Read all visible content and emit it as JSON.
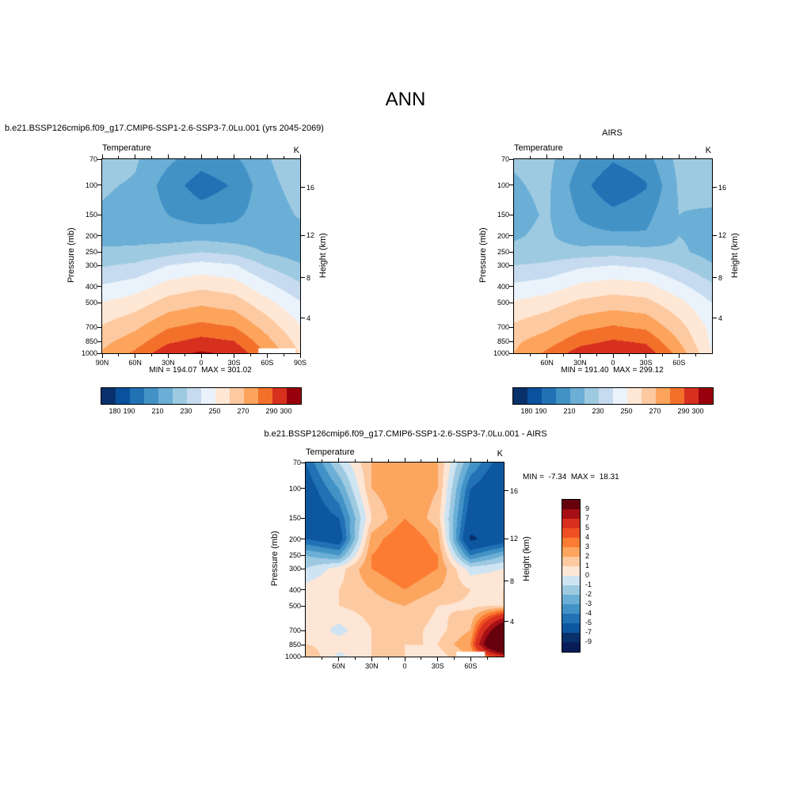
{
  "title": "ANN",
  "chart_data": [
    {
      "type": "heatmap",
      "panel": "model",
      "title": "b.e21.BSSP126cmip6.f09_g17.CMIP6-SSP1-2.6-SSP3-7.0Lu.001 (yrs 2045-2069)",
      "field_name": "Temperature",
      "units": "K",
      "ylabel": "Pressure (mb)",
      "ylabel_right": "Height (km)",
      "stats": "MIN = 194.07  MAX = 301.02",
      "min": 194.07,
      "max": 301.02,
      "lats": [
        90,
        60,
        30,
        0,
        -30,
        -60,
        -90
      ],
      "pressures_mb": [
        70,
        100,
        150,
        200,
        250,
        300,
        400,
        500,
        700,
        850,
        1000
      ],
      "values": [
        [
          224,
          221,
          212,
          204,
          208,
          219,
          227
        ],
        [
          221,
          219,
          205,
          195,
          201,
          217,
          224
        ],
        [
          219,
          217,
          210,
          205,
          208,
          215,
          221
        ],
        [
          218,
          217,
          215,
          216,
          214,
          214,
          216
        ],
        [
          221,
          222,
          226,
          230,
          227,
          219,
          215
        ],
        [
          229,
          232,
          240,
          244,
          241,
          229,
          221
        ],
        [
          241,
          245,
          254,
          258,
          255,
          243,
          232
        ],
        [
          250,
          255,
          264,
          268,
          265,
          253,
          241
        ],
        [
          261,
          268,
          279,
          283,
          280,
          266,
          251
        ],
        [
          267,
          275,
          288,
          293,
          290,
          273,
          256
        ],
        [
          271,
          282,
          297,
          301,
          298,
          279,
          259
        ]
      ],
      "levels": [
        180,
        190,
        200,
        210,
        220,
        230,
        240,
        250,
        260,
        270,
        280,
        290,
        300
      ],
      "colors": [
        "#08306b",
        "#0a519e",
        "#2171b5",
        "#4292c6",
        "#6baed6",
        "#9ecae1",
        "#c6dbef",
        "#eaf3fb",
        "#fee7d4",
        "#fdc9a0",
        "#fca45c",
        "#f3702b",
        "#d7301f",
        "#99000d"
      ],
      "colorbar_labels": [
        180,
        190,
        210,
        230,
        250,
        270,
        290,
        300
      ],
      "x_ticks": {
        "major": [
          90,
          60,
          30,
          0,
          -30,
          -60,
          -90
        ],
        "labels": [
          "90N",
          "60N",
          "30N",
          "0",
          "30S",
          "60S",
          "90S"
        ],
        "minor": [
          75,
          45,
          15,
          -15,
          -45,
          -75
        ]
      },
      "y_ticks": [
        70,
        100,
        150,
        200,
        250,
        300,
        400,
        500,
        700,
        850,
        1000
      ],
      "height_ticks": [
        {
          "label": "16",
          "p": 103
        },
        {
          "label": "12",
          "p": 199
        },
        {
          "label": "8",
          "p": 356
        },
        {
          "label": "4",
          "p": 617
        }
      ],
      "masks": [
        {
          "lat": [
            -52,
            -86
          ],
          "p": [
            935,
            1000
          ]
        }
      ]
    },
    {
      "type": "heatmap",
      "panel": "obs",
      "title": "AIRS",
      "field_name": "Temperature",
      "units": "K",
      "ylabel": "Pressure (mb)",
      "ylabel_right": "Height (km)",
      "stats": "MIN = 191.40  MAX = 299.12",
      "min": 191.4,
      "max": 299.12,
      "lats": [
        90,
        60,
        30,
        0,
        -30,
        -60,
        -90
      ],
      "pressures_mb": [
        70,
        100,
        150,
        200,
        250,
        300,
        400,
        500,
        700,
        850,
        1000
      ],
      "values": [
        [
          221,
          223,
          210,
          201,
          206,
          223,
          225
        ],
        [
          219,
          222,
          204,
          192,
          199,
          221,
          223
        ],
        [
          217,
          221,
          209,
          203,
          207,
          220,
          219
        ],
        [
          219,
          222,
          213,
          212,
          211,
          220,
          217
        ],
        [
          222,
          224,
          224,
          226,
          224,
          222,
          216
        ],
        [
          230,
          232,
          238,
          240,
          238,
          230,
          221
        ],
        [
          242,
          245,
          252,
          255,
          253,
          243,
          232
        ],
        [
          251,
          255,
          262,
          265,
          263,
          253,
          240
        ],
        [
          262,
          268,
          277,
          281,
          278,
          264,
          247
        ],
        [
          268,
          275,
          286,
          291,
          288,
          270,
          248
        ],
        [
          270,
          282,
          295,
          299,
          296,
          276,
          250
        ]
      ],
      "levels": [
        180,
        190,
        200,
        210,
        220,
        230,
        240,
        250,
        260,
        270,
        280,
        290,
        300
      ],
      "colors": [
        "#08306b",
        "#0a519e",
        "#2171b5",
        "#4292c6",
        "#6baed6",
        "#9ecae1",
        "#c6dbef",
        "#eaf3fb",
        "#fee7d4",
        "#fdc9a0",
        "#fca45c",
        "#f3702b",
        "#d7301f",
        "#99000d"
      ],
      "colorbar_labels": [
        180,
        190,
        210,
        230,
        250,
        270,
        290,
        300
      ],
      "x_ticks": {
        "major": [
          60,
          30,
          0,
          -30,
          -60
        ],
        "labels": [
          "60N",
          "30N",
          "0",
          "30S",
          "60S"
        ],
        "minor": [
          75,
          45,
          15,
          -15,
          -45,
          -75
        ]
      },
      "y_ticks": [
        70,
        100,
        150,
        200,
        250,
        300,
        400,
        500,
        700,
        850,
        1000
      ],
      "height_ticks": [
        {
          "label": "16",
          "p": 103
        },
        {
          "label": "12",
          "p": 199
        },
        {
          "label": "8",
          "p": 356
        },
        {
          "label": "4",
          "p": 617
        }
      ],
      "masks": []
    },
    {
      "type": "heatmap",
      "panel": "difference",
      "title": "b.e21.BSSP126cmip6.f09_g17.CMIP6-SSP1-2.6-SSP3-7.0Lu.001 - AIRS",
      "field_name": "Temperature",
      "units": "K",
      "ylabel": "Pressure (mb)",
      "ylabel_right": "Height (km)",
      "stats": "MIN =  -7.34  MAX =  18.31",
      "min": -7.34,
      "max": 18.31,
      "lats": [
        90,
        60,
        30,
        0,
        -30,
        -60,
        -90
      ],
      "pressures_mb": [
        70,
        100,
        150,
        200,
        250,
        300,
        400,
        500,
        700,
        850,
        1000
      ],
      "values": [
        [
          -5,
          -1,
          2,
          3,
          2,
          -3,
          -6
        ],
        [
          -6,
          -3,
          2,
          3,
          2,
          -5,
          -7
        ],
        [
          -6.5,
          -5,
          1,
          3,
          1.5,
          -6,
          -7
        ],
        [
          -5,
          -6,
          2.5,
          4,
          2.5,
          -7.3,
          -6
        ],
        [
          -2,
          -3,
          3,
          4,
          3,
          -4,
          -2
        ],
        [
          -1,
          0.5,
          3,
          4,
          3,
          -0.5,
          0
        ],
        [
          0.5,
          1,
          2,
          3,
          2,
          1,
          1
        ],
        [
          0.4,
          1,
          1.5,
          2,
          1,
          0.8,
          1
        ],
        [
          1,
          -0.4,
          1,
          1.5,
          0.6,
          2,
          13
        ],
        [
          1,
          0.5,
          1,
          1,
          1,
          3,
          18
        ],
        [
          2,
          -0.3,
          1,
          1,
          0.5,
          2,
          6
        ]
      ],
      "levels": [
        -9,
        -7,
        -5,
        -4,
        -3,
        -2,
        -1,
        0,
        1,
        2,
        3,
        4,
        5,
        7,
        9
      ],
      "colors": [
        "#081d58",
        "#08306b",
        "#0d57a1",
        "#2171b5",
        "#4292c6",
        "#6baed6",
        "#9ecae1",
        "#cfe4f2",
        "#fde6d5",
        "#fdc9a0",
        "#fca55f",
        "#fb7c32",
        "#ef5022",
        "#d7301f",
        "#a50f15",
        "#67000d"
      ],
      "colorbar_labels": [
        9,
        7,
        5,
        4,
        3,
        2,
        1,
        0,
        -1,
        -2,
        -3,
        -4,
        -5,
        -7,
        -9
      ],
      "x_ticks": {
        "major": [
          60,
          30,
          0,
          -30,
          -60
        ],
        "labels": [
          "60N",
          "30N",
          "0",
          "30S",
          "60S"
        ],
        "minor": [
          75,
          45,
          15,
          -15,
          -45,
          -75
        ]
      },
      "y_ticks": [
        70,
        100,
        150,
        200,
        250,
        300,
        400,
        500,
        700,
        850,
        1000
      ],
      "height_ticks": [
        {
          "label": "16",
          "p": 103
        },
        {
          "label": "12",
          "p": 199
        },
        {
          "label": "8",
          "p": 356
        },
        {
          "label": "4",
          "p": 617
        }
      ],
      "masks": [
        {
          "lat": [
            -47,
            -73
          ],
          "p": [
            935,
            1000
          ]
        }
      ]
    }
  ]
}
